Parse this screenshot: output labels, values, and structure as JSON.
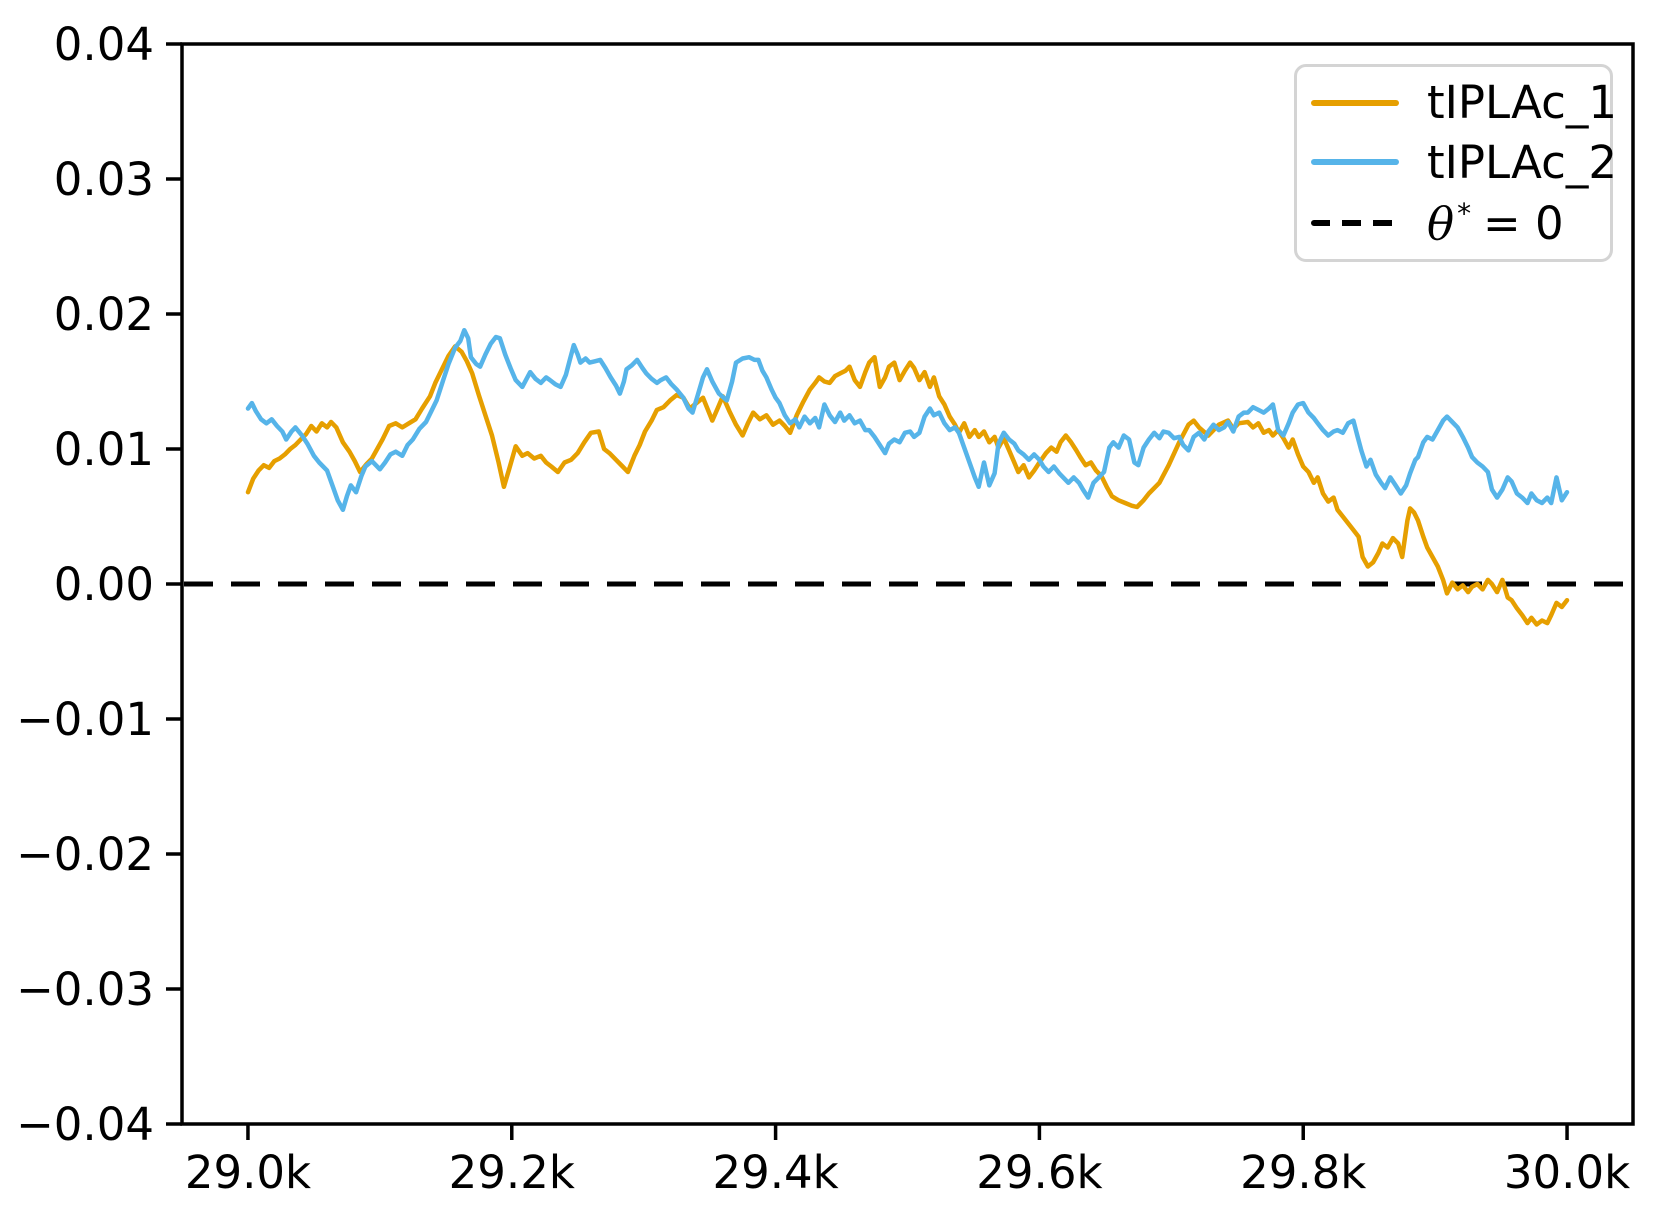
{
  "chart_data": {
    "type": "line",
    "title": "",
    "xlabel": "",
    "ylabel": "",
    "grid": false,
    "legend_position": "upper right",
    "xlim": [
      28950,
      30050
    ],
    "ylim": [
      -0.04,
      0.04
    ],
    "x_ticks": {
      "values": [
        29000,
        29200,
        29400,
        29600,
        29800,
        30000
      ],
      "labels": [
        "29.0k",
        "29.2k",
        "29.4k",
        "29.6k",
        "29.8k",
        "30.0k"
      ]
    },
    "y_ticks": {
      "values": [
        -0.04,
        -0.03,
        -0.02,
        -0.01,
        0.0,
        0.01,
        0.02,
        0.03,
        0.04
      ],
      "labels": [
        "−0.04",
        "−0.03",
        "−0.02",
        "−0.01",
        "0.00",
        "0.01",
        "0.02",
        "0.03",
        "0.04"
      ]
    },
    "reference_line": {
      "label": "θ* = 0",
      "y": 0,
      "color": "#000000",
      "style": "dashed"
    },
    "series": [
      {
        "name": "tIPLAc_1",
        "color": "#E69F00",
        "x": [
          29000,
          29004,
          29008,
          29012,
          29016,
          29020,
          29024,
          29028,
          29032,
          29036,
          29040,
          29044,
          29048,
          29052,
          29056,
          29060,
          29063,
          29067,
          29072,
          29077,
          29081,
          29085,
          29090,
          29094,
          29098,
          29102,
          29107,
          29112,
          29117,
          29122,
          29127,
          29132,
          29138,
          29142,
          29147,
          29152,
          29157,
          29162,
          29166,
          29170,
          29175,
          29180,
          29185,
          29190,
          29194,
          29198,
          29203,
          29208,
          29212,
          29217,
          29222,
          29226,
          29230,
          29235,
          29240,
          29245,
          29250,
          29255,
          29260,
          29266,
          29270,
          29274,
          29279,
          29284,
          29288,
          29293,
          29297,
          29301,
          29306,
          29310,
          29315,
          29320,
          29325,
          29330,
          29335,
          29340,
          29345,
          29352,
          29356,
          29360,
          29365,
          29370,
          29375,
          29379,
          29383,
          29388,
          29393,
          29398,
          29403,
          29407,
          29411,
          29416,
          29421,
          29426,
          29430,
          29433,
          29437,
          29441,
          29445,
          29449,
          29453,
          29456,
          29460,
          29464,
          29468,
          29471,
          29475,
          29479,
          29483,
          29486,
          29490,
          29494,
          29498,
          29502,
          29505,
          29509,
          29513,
          29517,
          29520,
          29524,
          29528,
          29532,
          29536,
          29539,
          29543,
          29547,
          29551,
          29554,
          29558,
          29562,
          29566,
          29569,
          29573,
          29577,
          29581,
          29584,
          29588,
          29592,
          29596,
          29600,
          29605,
          29609,
          29613,
          29616,
          29620,
          29624,
          29628,
          29631,
          29635,
          29639,
          29643,
          29647,
          29651,
          29655,
          29660,
          29665,
          29670,
          29674,
          29679,
          29683,
          29691,
          29698,
          29706,
          29713,
          29717,
          29721,
          29728,
          29736,
          29743,
          29747,
          29751,
          29758,
          29762,
          29766,
          29770,
          29774,
          29777,
          29781,
          29785,
          29789,
          29792,
          29796,
          29800,
          29804,
          29808,
          29811,
          29815,
          29819,
          29823,
          29826,
          29830,
          29834,
          29838,
          29842,
          29845,
          29849,
          29853,
          29857,
          29860,
          29864,
          29868,
          29872,
          29875,
          29879,
          29881,
          29884,
          29887,
          29891,
          29894,
          29898,
          29902,
          29906,
          29909,
          29913,
          29917,
          29921,
          29925,
          29928,
          29932,
          29936,
          29940,
          29943,
          29947,
          29951,
          29955,
          29958,
          29962,
          29966,
          29970,
          29973,
          29977,
          29981,
          29985,
          29988,
          29992,
          29996,
          30000
        ],
        "y": [
          0.0068,
          0.0078,
          0.0084,
          0.0088,
          0.0086,
          0.0091,
          0.0093,
          0.0096,
          0.01,
          0.0103,
          0.0107,
          0.0111,
          0.0117,
          0.0113,
          0.0119,
          0.0116,
          0.012,
          0.0116,
          0.0105,
          0.0098,
          0.0091,
          0.0083,
          0.0089,
          0.0093,
          0.01,
          0.0107,
          0.0117,
          0.0119,
          0.0116,
          0.0119,
          0.0122,
          0.013,
          0.0139,
          0.0149,
          0.0159,
          0.0169,
          0.0176,
          0.0172,
          0.0165,
          0.0156,
          0.014,
          0.0125,
          0.011,
          0.009,
          0.0072,
          0.0085,
          0.0102,
          0.0095,
          0.0097,
          0.0093,
          0.0095,
          0.009,
          0.0087,
          0.0083,
          0.009,
          0.0092,
          0.0097,
          0.0105,
          0.0112,
          0.0113,
          0.01,
          0.0097,
          0.0092,
          0.0087,
          0.0083,
          0.0095,
          0.0103,
          0.0113,
          0.0121,
          0.0129,
          0.0131,
          0.0136,
          0.014,
          0.0138,
          0.013,
          0.0134,
          0.0138,
          0.0121,
          0.013,
          0.0139,
          0.0128,
          0.0118,
          0.011,
          0.0119,
          0.0127,
          0.0122,
          0.0125,
          0.0118,
          0.0121,
          0.0117,
          0.0112,
          0.0125,
          0.0135,
          0.0144,
          0.0149,
          0.0153,
          0.015,
          0.0149,
          0.0154,
          0.0156,
          0.0158,
          0.0161,
          0.0151,
          0.0146,
          0.0157,
          0.0164,
          0.0168,
          0.0146,
          0.0153,
          0.0161,
          0.0164,
          0.0151,
          0.0158,
          0.0164,
          0.016,
          0.0151,
          0.0157,
          0.0146,
          0.0153,
          0.0139,
          0.0133,
          0.0124,
          0.0118,
          0.0112,
          0.0119,
          0.0109,
          0.0114,
          0.0109,
          0.0113,
          0.0105,
          0.0109,
          0.0101,
          0.0108,
          0.0099,
          0.009,
          0.0083,
          0.0088,
          0.0079,
          0.0084,
          0.009,
          0.0097,
          0.0101,
          0.0098,
          0.0105,
          0.011,
          0.0105,
          0.0099,
          0.0094,
          0.0088,
          0.009,
          0.0084,
          0.008,
          0.0072,
          0.0065,
          0.0062,
          0.006,
          0.0058,
          0.0057,
          0.0062,
          0.0067,
          0.0075,
          0.0088,
          0.0105,
          0.0118,
          0.0121,
          0.0116,
          0.011,
          0.0118,
          0.0121,
          0.0115,
          0.0119,
          0.012,
          0.0116,
          0.0119,
          0.0112,
          0.0114,
          0.011,
          0.0114,
          0.0108,
          0.0101,
          0.0107,
          0.0096,
          0.0087,
          0.0083,
          0.0075,
          0.0079,
          0.0067,
          0.0061,
          0.0064,
          0.0055,
          0.005,
          0.0045,
          0.004,
          0.0035,
          0.002,
          0.0013,
          0.0016,
          0.0023,
          0.003,
          0.0027,
          0.0034,
          0.003,
          0.002,
          0.0047,
          0.0056,
          0.0053,
          0.0047,
          0.0035,
          0.0027,
          0.002,
          0.0013,
          0.0003,
          -0.0007,
          0.0001,
          -0.0004,
          -0.0001,
          -0.0006,
          -0.0002,
          0.0,
          -0.0004,
          0.0003,
          0.0,
          -0.0006,
          0.0003,
          -0.001,
          -0.0012,
          -0.0018,
          -0.0023,
          -0.0029,
          -0.0025,
          -0.003,
          -0.0027,
          -0.0029,
          -0.0023,
          -0.0014,
          -0.0017,
          -0.0012
        ]
      },
      {
        "name": "tIPLAc_2",
        "color": "#56B4E9",
        "x": [
          29000,
          29003,
          29006,
          29010,
          29014,
          29018,
          29022,
          29026,
          29029,
          29033,
          29036,
          29041,
          29045,
          29050,
          29054,
          29060,
          29064,
          29068,
          29072,
          29075,
          29078,
          29082,
          29086,
          29089,
          29094,
          29100,
          29104,
          29108,
          29112,
          29117,
          29121,
          29125,
          29130,
          29135,
          29139,
          29143,
          29148,
          29152,
          29157,
          29161,
          29164,
          29167,
          29169,
          29173,
          29176,
          29180,
          29184,
          29188,
          29191,
          29195,
          29199,
          29203,
          29208,
          29214,
          29218,
          29222,
          29226,
          29229,
          29233,
          29237,
          29241,
          29244,
          29247,
          29250,
          29252,
          29256,
          29259,
          29263,
          29267,
          29271,
          29275,
          29279,
          29282,
          29285,
          29287,
          29291,
          29295,
          29299,
          29302,
          29306,
          29310,
          29313,
          29317,
          29321,
          29325,
          29330,
          29334,
          29337,
          29341,
          29345,
          29348,
          29352,
          29357,
          29363,
          29367,
          29370,
          29375,
          29380,
          29384,
          29387,
          29390,
          29393,
          29397,
          29400,
          29403,
          29407,
          29411,
          29415,
          29418,
          29422,
          29426,
          29430,
          29433,
          29437,
          29441,
          29445,
          29449,
          29452,
          29456,
          29460,
          29464,
          29468,
          29471,
          29475,
          29479,
          29483,
          29486,
          29490,
          29494,
          29498,
          29502,
          29505,
          29509,
          29513,
          29517,
          29520,
          29524,
          29528,
          29532,
          29536,
          29539,
          29543,
          29547,
          29551,
          29554,
          29558,
          29562,
          29566,
          29569,
          29573,
          29577,
          29581,
          29584,
          29588,
          29592,
          29596,
          29600,
          29603,
          29607,
          29611,
          29615,
          29618,
          29622,
          29626,
          29630,
          29633,
          29637,
          29641,
          29645,
          29649,
          29653,
          29656,
          29660,
          29664,
          29668,
          29672,
          29675,
          29679,
          29683,
          29687,
          29691,
          29694,
          29698,
          29702,
          29706,
          29709,
          29713,
          29717,
          29721,
          29725,
          29728,
          29732,
          29736,
          29740,
          29743,
          29747,
          29751,
          29755,
          29758,
          29762,
          29766,
          29770,
          29774,
          29777,
          29781,
          29785,
          29789,
          29792,
          29796,
          29800,
          29804,
          29808,
          29811,
          29815,
          29819,
          29823,
          29826,
          29830,
          29834,
          29838,
          29841,
          29844,
          29848,
          29851,
          29855,
          29859,
          29862,
          29866,
          29870,
          29874,
          29878,
          29881,
          29885,
          29887,
          29891,
          29894,
          29898,
          29902,
          29906,
          29909,
          29913,
          29917,
          29921,
          29925,
          29928,
          29932,
          29936,
          29940,
          29943,
          29947,
          29951,
          29955,
          29958,
          29962,
          29966,
          29970,
          29973,
          29977,
          29981,
          29985,
          29988,
          29992,
          29996,
          30000
        ],
        "y": [
          0.013,
          0.0134,
          0.0128,
          0.0122,
          0.0119,
          0.0122,
          0.0117,
          0.0113,
          0.0107,
          0.0113,
          0.0116,
          0.011,
          0.0104,
          0.0095,
          0.009,
          0.0084,
          0.0073,
          0.0062,
          0.0055,
          0.0065,
          0.0073,
          0.0068,
          0.008,
          0.0087,
          0.0091,
          0.0085,
          0.009,
          0.0096,
          0.0098,
          0.0095,
          0.0103,
          0.0107,
          0.0115,
          0.012,
          0.0128,
          0.0136,
          0.0151,
          0.0163,
          0.0175,
          0.018,
          0.0188,
          0.0182,
          0.0168,
          0.0163,
          0.0161,
          0.017,
          0.0178,
          0.0183,
          0.0182,
          0.017,
          0.016,
          0.0151,
          0.0146,
          0.0157,
          0.0152,
          0.0149,
          0.0153,
          0.0151,
          0.0148,
          0.0146,
          0.0155,
          0.0166,
          0.0177,
          0.017,
          0.0164,
          0.0167,
          0.0164,
          0.0165,
          0.0166,
          0.016,
          0.0153,
          0.0147,
          0.0141,
          0.015,
          0.0159,
          0.0162,
          0.0166,
          0.016,
          0.0156,
          0.0152,
          0.0149,
          0.0151,
          0.0153,
          0.0148,
          0.0144,
          0.0138,
          0.013,
          0.0127,
          0.014,
          0.0153,
          0.0159,
          0.015,
          0.0141,
          0.0136,
          0.015,
          0.0164,
          0.0167,
          0.0168,
          0.0166,
          0.0166,
          0.0158,
          0.0153,
          0.0144,
          0.0138,
          0.0134,
          0.0125,
          0.0119,
          0.0122,
          0.0116,
          0.0124,
          0.0119,
          0.0123,
          0.0116,
          0.0133,
          0.0125,
          0.012,
          0.0127,
          0.0121,
          0.0125,
          0.0119,
          0.0121,
          0.0114,
          0.0114,
          0.0109,
          0.0103,
          0.0097,
          0.0104,
          0.0107,
          0.0105,
          0.0112,
          0.0113,
          0.0109,
          0.0112,
          0.0124,
          0.013,
          0.0125,
          0.0127,
          0.0119,
          0.0114,
          0.0116,
          0.0112,
          0.0101,
          0.009,
          0.0079,
          0.0072,
          0.009,
          0.0073,
          0.0082,
          0.0104,
          0.0112,
          0.0107,
          0.0104,
          0.0099,
          0.0096,
          0.0092,
          0.0096,
          0.0092,
          0.0087,
          0.0083,
          0.0087,
          0.0082,
          0.0079,
          0.0075,
          0.0079,
          0.0075,
          0.007,
          0.0064,
          0.0075,
          0.0079,
          0.0083,
          0.0101,
          0.0105,
          0.0101,
          0.011,
          0.0107,
          0.009,
          0.0088,
          0.0101,
          0.0107,
          0.0112,
          0.0108,
          0.0113,
          0.0112,
          0.0108,
          0.0109,
          0.0103,
          0.0099,
          0.0109,
          0.0112,
          0.0107,
          0.0113,
          0.0118,
          0.0114,
          0.0116,
          0.012,
          0.0113,
          0.0124,
          0.0127,
          0.0127,
          0.0131,
          0.0129,
          0.0127,
          0.013,
          0.0133,
          0.0114,
          0.011,
          0.0119,
          0.0127,
          0.0133,
          0.0134,
          0.0127,
          0.0123,
          0.0119,
          0.0114,
          0.011,
          0.0113,
          0.0114,
          0.0112,
          0.0119,
          0.0121,
          0.011,
          0.0099,
          0.0087,
          0.0092,
          0.0081,
          0.0075,
          0.0071,
          0.0079,
          0.0073,
          0.0067,
          0.0073,
          0.0082,
          0.0092,
          0.0094,
          0.0105,
          0.0109,
          0.0107,
          0.0114,
          0.0121,
          0.0124,
          0.012,
          0.0116,
          0.0109,
          0.0101,
          0.0094,
          0.009,
          0.0087,
          0.0083,
          0.007,
          0.0064,
          0.007,
          0.0079,
          0.0076,
          0.0067,
          0.0064,
          0.006,
          0.0067,
          0.0062,
          0.006,
          0.0064,
          0.006,
          0.0079,
          0.0062,
          0.0068
        ]
      }
    ]
  },
  "legend": {
    "theta_symbol": "θ",
    "theta_sup": "*",
    "theta_rest": "= 0"
  }
}
